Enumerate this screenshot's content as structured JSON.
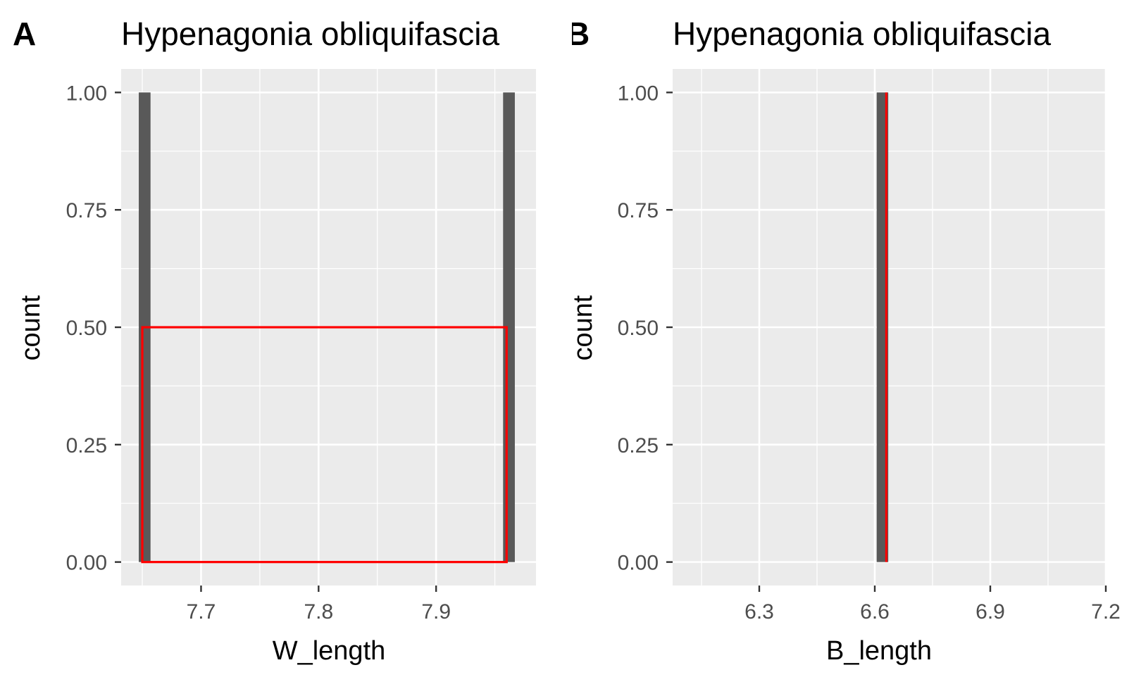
{
  "chart_data": [
    {
      "type": "bar",
      "panel_label": "A",
      "title": "Hypenagonia obliquifascia",
      "xlabel": "W_length",
      "ylabel": "count",
      "xlim": [
        7.632,
        7.985
      ],
      "ylim": [
        -0.05,
        1.05
      ],
      "x_ticks": [
        {
          "value": 7.7,
          "label": "7.7"
        },
        {
          "value": 7.8,
          "label": "7.8"
        },
        {
          "value": 7.9,
          "label": "7.9"
        }
      ],
      "y_ticks": [
        {
          "value": 0.0,
          "label": "0.00"
        },
        {
          "value": 0.25,
          "label": "0.25"
        },
        {
          "value": 0.5,
          "label": "0.50"
        },
        {
          "value": 0.75,
          "label": "0.75"
        },
        {
          "value": 1.0,
          "label": "1.00"
        }
      ],
      "bars": [
        {
          "xmin": 7.647,
          "xmax": 7.657,
          "count": 1
        },
        {
          "xmin": 7.957,
          "xmax": 7.967,
          "count": 1
        }
      ],
      "overlay_rect": {
        "xmin": 7.65,
        "xmax": 7.96,
        "ymin": 0,
        "ymax": 0.5
      },
      "grid": true,
      "colors": {
        "panel_bg": "#ebebeb",
        "grid": "#ffffff",
        "bar": "#595959",
        "overlay": "#ff0000"
      }
    },
    {
      "type": "bar",
      "panel_label": "B",
      "title": "Hypenagonia obliquifascia",
      "xlabel": "B_length",
      "ylabel": "count",
      "xlim": [
        6.075,
        7.2
      ],
      "ylim": [
        -0.05,
        1.05
      ],
      "x_ticks": [
        {
          "value": 6.3,
          "label": "6.3"
        },
        {
          "value": 6.6,
          "label": "6.6"
        },
        {
          "value": 6.9,
          "label": "6.9"
        },
        {
          "value": 7.2,
          "label": "7.2"
        }
      ],
      "y_ticks": [
        {
          "value": 0.0,
          "label": "0.00"
        },
        {
          "value": 0.25,
          "label": "0.25"
        },
        {
          "value": 0.5,
          "label": "0.50"
        },
        {
          "value": 0.75,
          "label": "0.75"
        },
        {
          "value": 1.0,
          "label": "1.00"
        }
      ],
      "bars": [
        {
          "xmin": 6.605,
          "xmax": 6.635,
          "count": 1
        }
      ],
      "overlay_line": {
        "x": 6.63,
        "ymin": 0,
        "ymax": 1
      },
      "grid": true,
      "colors": {
        "panel_bg": "#ebebeb",
        "grid": "#ffffff",
        "bar": "#595959",
        "overlay": "#ff0000"
      }
    }
  ]
}
